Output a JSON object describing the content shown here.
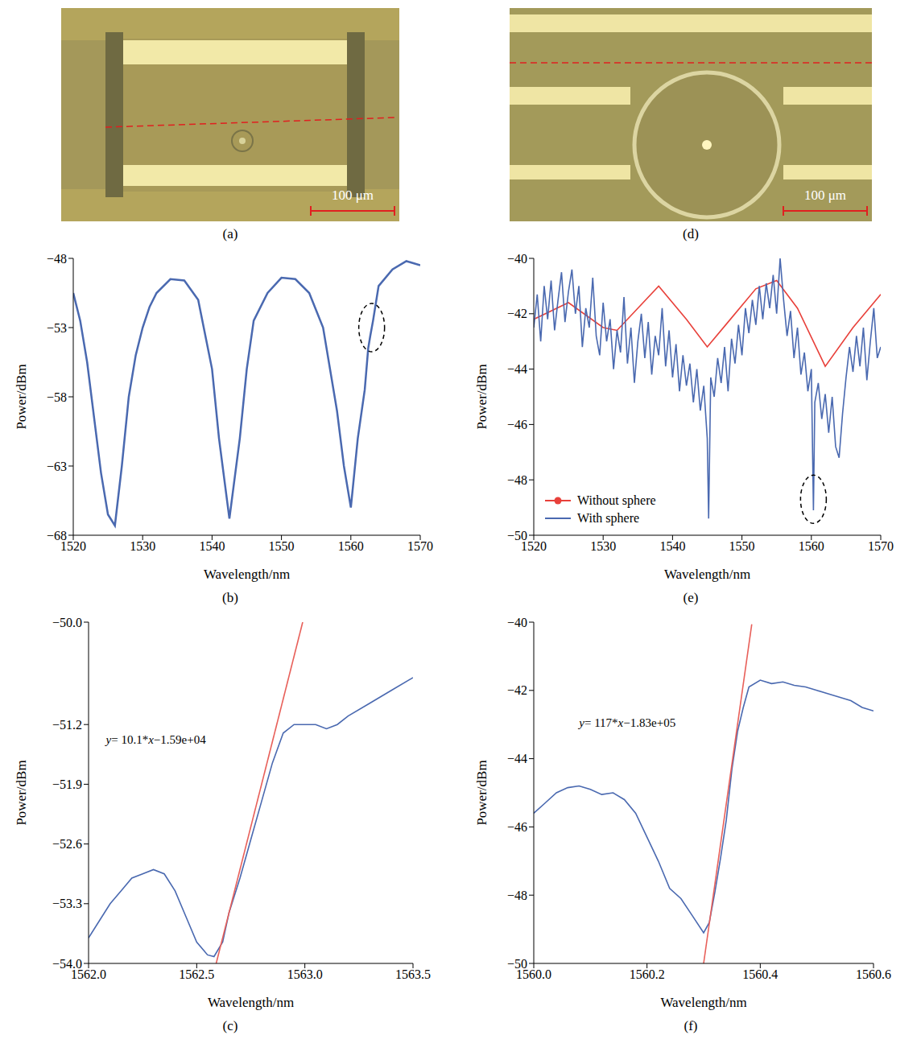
{
  "images": [
    {
      "label": "(a)",
      "scale_bar": "100 μm"
    },
    {
      "label": "(d)",
      "scale_bar": "100 μm"
    }
  ],
  "chart_data": [
    {
      "type": "line",
      "title": "(b)",
      "xlabel": "Wavelength/nm",
      "ylabel": "Power/dBm",
      "xlim": [
        1520,
        1570
      ],
      "xticks": [
        1520,
        1530,
        1540,
        1550,
        1560,
        1570
      ],
      "ylim": [
        -68,
        -48
      ],
      "yticks": [
        {
          "value": -68,
          "label": "−68"
        },
        {
          "value": -63,
          "label": "−63"
        },
        {
          "value": -58,
          "label": "−58"
        },
        {
          "value": -53,
          "label": "−53"
        },
        {
          "value": -48,
          "label": "−48"
        }
      ],
      "highlight": {
        "x": 1563,
        "y": -53
      },
      "series": [
        {
          "color": "#4a69b0",
          "line_style": "solid",
          "x": [
            1520,
            1521,
            1522,
            1523,
            1524,
            1525,
            1526,
            1527,
            1528,
            1529,
            1530,
            1531,
            1532,
            1534,
            1536,
            1538,
            1540,
            1541,
            1542.5,
            1544,
            1545,
            1546,
            1548,
            1550,
            1552,
            1554,
            1556,
            1558,
            1559,
            1560,
            1561,
            1562,
            1562.5,
            1562.8,
            1563.2,
            1564,
            1566,
            1568,
            1570
          ],
          "values": [
            -50.5,
            -52.5,
            -55.5,
            -59.5,
            -63.5,
            -66.5,
            -67.3,
            -63,
            -58,
            -55,
            -53,
            -51.5,
            -50.5,
            -49.5,
            -49.6,
            -51,
            -56,
            -61,
            -66.8,
            -61,
            -56,
            -52.5,
            -50.5,
            -49.4,
            -49.5,
            -50.5,
            -53,
            -59,
            -63,
            -66,
            -61,
            -57.5,
            -54.5,
            -53.6,
            -52.5,
            -50,
            -48.8,
            -48.2,
            -48.5
          ]
        }
      ]
    },
    {
      "type": "line",
      "title": "(c)",
      "xlabel": "Wavelength/nm",
      "ylabel": "Power/dBm",
      "xlim": [
        1562,
        1563.5
      ],
      "xticks": [
        {
          "value": 1562,
          "label": "1562.0"
        },
        {
          "value": 1562.5,
          "label": "1562.5"
        },
        {
          "value": 1563,
          "label": "1563.0"
        },
        {
          "value": 1563.5,
          "label": "1563.5"
        }
      ],
      "ylim": [
        -54,
        -50
      ],
      "yticks": [
        {
          "value": -54,
          "label": "−54.0"
        },
        {
          "value": -53.3,
          "label": "−53.3"
        },
        {
          "value": -52.6,
          "label": "−52.6"
        },
        {
          "value": -51.9,
          "label": "−51.9"
        },
        {
          "value": -51.2,
          "label": "−51.2"
        },
        {
          "value": -50,
          "label": "−50.0"
        }
      ],
      "annotations": [
        {
          "text": "y= 10.1*x−1.59e+04",
          "x": 1562.08,
          "y": -51.4
        }
      ],
      "series": [
        {
          "color": "#4a69b0",
          "line_style": "solid",
          "x": [
            1562,
            1562.05,
            1562.1,
            1562.15,
            1562.2,
            1562.25,
            1562.3,
            1562.35,
            1562.4,
            1562.45,
            1562.5,
            1562.55,
            1562.58,
            1562.62,
            1562.65,
            1562.7,
            1562.75,
            1562.8,
            1562.85,
            1562.9,
            1562.95,
            1563,
            1563.05,
            1563.1,
            1563.15,
            1563.2,
            1563.3,
            1563.4,
            1563.5
          ],
          "values": [
            -53.7,
            -53.5,
            -53.3,
            -53.15,
            -53,
            -52.95,
            -52.9,
            -52.95,
            -53.15,
            -53.45,
            -53.75,
            -53.9,
            -53.92,
            -53.75,
            -53.4,
            -53,
            -52.55,
            -52.1,
            -51.65,
            -51.3,
            -51.2,
            -51.2,
            -51.2,
            -51.25,
            -51.2,
            -51.1,
            -50.95,
            -50.8,
            -50.65
          ]
        },
        {
          "color": "#e8605a",
          "line_style": "solid",
          "x": [
            1562.59,
            1562.99
          ],
          "values": [
            -54,
            -50
          ]
        }
      ]
    },
    {
      "type": "line",
      "title": "(e)",
      "xlabel": "Wavelength/nm",
      "ylabel": "Power/dBm",
      "xlim": [
        1520,
        1570
      ],
      "xticks": [
        1520,
        1530,
        1540,
        1550,
        1560,
        1570
      ],
      "ylim": [
        -50,
        -40
      ],
      "yticks": [
        {
          "value": -50,
          "label": "−50"
        },
        {
          "value": -48,
          "label": "−48"
        },
        {
          "value": -46,
          "label": "−46"
        },
        {
          "value": -44,
          "label": "−44"
        },
        {
          "value": -42,
          "label": "−42"
        },
        {
          "value": -40,
          "label": "−40"
        }
      ],
      "legend": "lower left",
      "highlight": {
        "x": 1560.3,
        "y": -48.7
      },
      "series": [
        {
          "name": "Without sphere",
          "color": "#e8403a",
          "marker": "circle",
          "line_style": "solid",
          "x": [
            1520,
            1525,
            1530,
            1532,
            1538,
            1542,
            1545,
            1548,
            1552,
            1555,
            1558,
            1562,
            1566,
            1570
          ],
          "values": [
            -42.2,
            -41.6,
            -42.5,
            -42.6,
            -41,
            -42.2,
            -43.2,
            -42.3,
            -41.1,
            -40.8,
            -41.8,
            -43.9,
            -42.5,
            -41.3
          ]
        },
        {
          "name": "With sphere",
          "color": "#4a69b0",
          "line_style": "solid",
          "x": [
            1520,
            1520.5,
            1521,
            1521.5,
            1522,
            1522.5,
            1523,
            1523.5,
            1524,
            1524.5,
            1525,
            1525.5,
            1526,
            1526.5,
            1527,
            1527.5,
            1528,
            1528.5,
            1529,
            1529.5,
            1530,
            1530.5,
            1531,
            1531.5,
            1532,
            1532.5,
            1533,
            1533.5,
            1534,
            1534.5,
            1535,
            1535.5,
            1536,
            1536.5,
            1537,
            1537.5,
            1538,
            1538.5,
            1539,
            1539.5,
            1540,
            1540.5,
            1541,
            1541.5,
            1542,
            1542.5,
            1543,
            1543.5,
            1544,
            1544.5,
            1545,
            1545.2,
            1545.5,
            1546,
            1546.5,
            1547,
            1547.5,
            1548,
            1548.5,
            1549,
            1549.5,
            1550,
            1550.5,
            1551,
            1551.5,
            1552,
            1552.5,
            1553,
            1553.5,
            1554,
            1554.5,
            1555,
            1555.5,
            1556,
            1556.5,
            1557,
            1557.5,
            1558,
            1558.5,
            1559,
            1559.5,
            1560,
            1560.3,
            1560.5,
            1561,
            1561.5,
            1562,
            1562.5,
            1563,
            1563.5,
            1564,
            1564.5,
            1565,
            1565.5,
            1566,
            1566.5,
            1567,
            1567.5,
            1568,
            1568.5,
            1569,
            1569.5,
            1570
          ],
          "values": [
            -42.5,
            -41.3,
            -43,
            -41,
            -42.2,
            -40.8,
            -42.6,
            -41.5,
            -40.5,
            -42.3,
            -41.2,
            -40.4,
            -42,
            -41,
            -43.2,
            -41.8,
            -42.5,
            -40.7,
            -42.8,
            -43.5,
            -41.6,
            -43,
            -42.2,
            -44,
            -42.6,
            -43.4,
            -41.4,
            -43.8,
            -42.5,
            -44.5,
            -43,
            -42,
            -43.6,
            -42.3,
            -44.2,
            -42.8,
            -43.5,
            -41.8,
            -43.9,
            -42.6,
            -44.3,
            -43.1,
            -44.8,
            -43.5,
            -44.6,
            -43.8,
            -45.2,
            -44,
            -45.5,
            -44.6,
            -46.5,
            -49.4,
            -44.3,
            -45,
            -43.6,
            -44.5,
            -43.2,
            -44.8,
            -42.9,
            -43.8,
            -42.4,
            -43.5,
            -41.8,
            -42.7,
            -41.5,
            -42.4,
            -41,
            -42.2,
            -40.9,
            -41.8,
            -40.6,
            -42,
            -40,
            -41.5,
            -42.8,
            -41.9,
            -43.6,
            -42.5,
            -44.2,
            -43.4,
            -44.8,
            -44,
            -49.1,
            -45.2,
            -44.5,
            -45.8,
            -44.9,
            -46.3,
            -45,
            -46.8,
            -47.2,
            -45.6,
            -44.3,
            -43.2,
            -44.1,
            -42.8,
            -43.9,
            -42.5,
            -44.4,
            -43,
            -41.8,
            -43.6,
            -43.2
          ]
        }
      ]
    },
    {
      "type": "line",
      "title": "(f)",
      "xlabel": "Wavelength/nm",
      "ylabel": "Power/dBm",
      "xlim": [
        1560,
        1560.6
      ],
      "xticks": [
        {
          "value": 1560,
          "label": "1560.0"
        },
        {
          "value": 1560.2,
          "label": "1560.2"
        },
        {
          "value": 1560.4,
          "label": "1560.4"
        },
        {
          "value": 1560.6,
          "label": "1560.6"
        }
      ],
      "ylim": [
        -50,
        -40
      ],
      "yticks": [
        {
          "value": -50,
          "label": "−50"
        },
        {
          "value": -48,
          "label": "−48"
        },
        {
          "value": -46,
          "label": "−46"
        },
        {
          "value": -44,
          "label": "−44"
        },
        {
          "value": -42,
          "label": "−42"
        },
        {
          "value": -40,
          "label": "−40"
        }
      ],
      "annotations": [
        {
          "text": "y= 117*x−1.83e+05",
          "x": 1560.08,
          "y": -43.0
        }
      ],
      "series": [
        {
          "color": "#4a69b0",
          "line_style": "solid",
          "x": [
            1560,
            1560.02,
            1560.04,
            1560.06,
            1560.08,
            1560.1,
            1560.12,
            1560.14,
            1560.16,
            1560.18,
            1560.2,
            1560.22,
            1560.24,
            1560.26,
            1560.28,
            1560.3,
            1560.31,
            1560.32,
            1560.33,
            1560.34,
            1560.35,
            1560.36,
            1560.37,
            1560.38,
            1560.4,
            1560.42,
            1560.44,
            1560.46,
            1560.48,
            1560.5,
            1560.52,
            1560.54,
            1560.56,
            1560.58,
            1560.6
          ],
          "values": [
            -45.6,
            -45.3,
            -45,
            -44.85,
            -44.8,
            -44.9,
            -45.05,
            -45,
            -45.2,
            -45.6,
            -46.3,
            -47,
            -47.8,
            -48.1,
            -48.6,
            -49.1,
            -48.8,
            -47.9,
            -46.9,
            -45.8,
            -44.3,
            -43.2,
            -42.5,
            -41.9,
            -41.7,
            -41.8,
            -41.75,
            -41.85,
            -41.9,
            -42,
            -42.1,
            -42.2,
            -42.3,
            -42.5,
            -42.6
          ]
        },
        {
          "color": "#e8605a",
          "line_style": "solid",
          "x": [
            1560.3,
            1560.385
          ],
          "values": [
            -50,
            -40.06
          ]
        }
      ]
    }
  ]
}
